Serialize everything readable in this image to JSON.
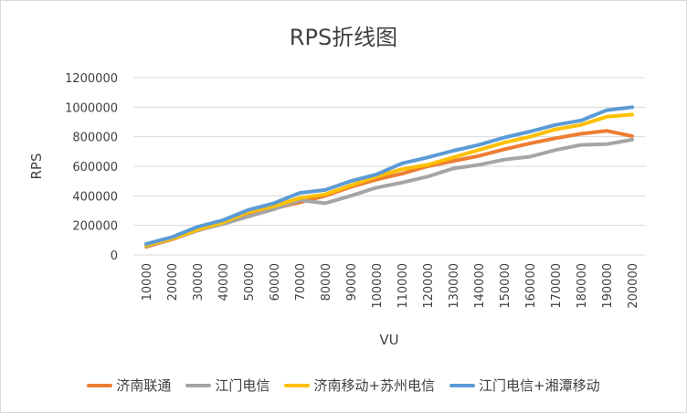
{
  "chart_data": {
    "type": "line",
    "title": "RPS折线图",
    "xlabel": "VU",
    "ylabel": "RPS",
    "ylim": [
      0,
      1200000
    ],
    "yticks": [
      "0",
      "200000",
      "400000",
      "600000",
      "800000",
      "1000000",
      "1200000"
    ],
    "categories": [
      "10000",
      "20000",
      "30000",
      "40000",
      "50000",
      "60000",
      "70000",
      "80000",
      "90000",
      "100000",
      "110000",
      "120000",
      "130000",
      "140000",
      "150000",
      "160000",
      "170000",
      "180000",
      "190000",
      "200000"
    ],
    "grid": true,
    "legend_position": "bottom",
    "series": [
      {
        "name": "济南联通",
        "color": "#ED7D31",
        "values": [
          55000,
          105000,
          165000,
          215000,
          270000,
          315000,
          355000,
          400000,
          460000,
          510000,
          550000,
          600000,
          635000,
          670000,
          715000,
          755000,
          790000,
          820000,
          840000,
          805000
        ]
      },
      {
        "name": "江门电信",
        "color": "#A5A5A5",
        "values": [
          60000,
          110000,
          165000,
          210000,
          260000,
          310000,
          370000,
          350000,
          400000,
          455000,
          490000,
          530000,
          585000,
          610000,
          645000,
          665000,
          710000,
          745000,
          750000,
          780000
        ]
      },
      {
        "name": "济南移动+苏州电信",
        "color": "#FFC000",
        "values": [
          65000,
          110000,
          170000,
          220000,
          290000,
          330000,
          385000,
          410000,
          470000,
          530000,
          580000,
          610000,
          660000,
          710000,
          760000,
          800000,
          850000,
          880000,
          935000,
          950000
        ]
      },
      {
        "name": "江门电信+湘潭移动",
        "color": "#5B9BD5",
        "values": [
          75000,
          120000,
          190000,
          235000,
          305000,
          350000,
          420000,
          440000,
          500000,
          545000,
          620000,
          660000,
          705000,
          745000,
          795000,
          835000,
          880000,
          910000,
          980000,
          1000000
        ]
      }
    ]
  }
}
